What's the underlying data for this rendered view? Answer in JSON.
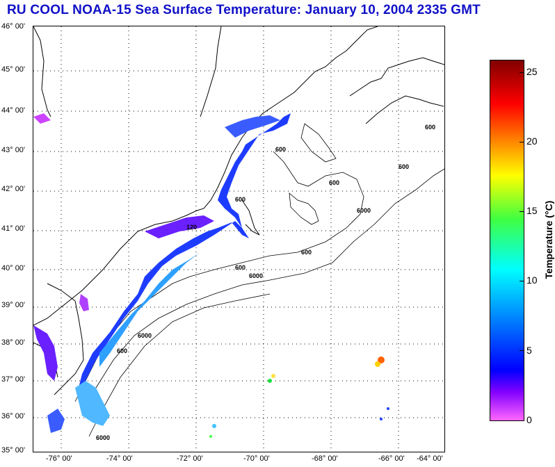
{
  "title": "RU COOL  NOAA-15  Sea Surface Temperature:  January 10, 2004 2335 GMT",
  "latitudes": [
    "46° 00'",
    "45° 00'",
    "44° 00'",
    "43° 00'",
    "42° 00'",
    "41° 00'",
    "40° 00'",
    "39° 00'",
    "38° 00'",
    "37° 00'",
    "36° 00'",
    "35° 00'"
  ],
  "longitudes": [
    "-76° 00'",
    "-74° 00'",
    "-72° 00'",
    "-70° 00'",
    "-68° 00'",
    "-66° 00'",
    "-64° 00'"
  ],
  "contour_labels": [
    "120",
    "600",
    "6000"
  ],
  "colorbar": {
    "label": "Temperature (°C)",
    "ticks": [
      "25",
      "20",
      "15",
      "10",
      "5",
      "0"
    ],
    "min": 0,
    "max": 26,
    "colors": {
      "low": "#ff66ff",
      "cold": "#8000ff",
      "blue": "#0000ff",
      "cyan": "#00ffff",
      "green": "#40ff40",
      "yellow": "#ffff00",
      "orange": "#ff8000",
      "red": "#ff0000",
      "high": "#800000"
    }
  }
}
